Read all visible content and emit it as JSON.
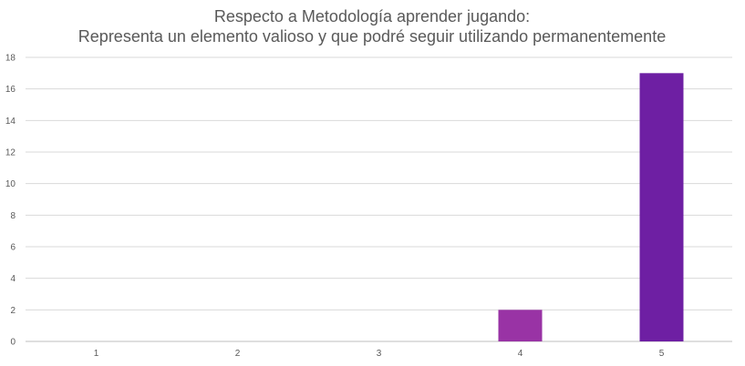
{
  "chart_data": {
    "type": "bar",
    "title": [
      "Respecto a Metodología aprender jugando:",
      "Representa un elemento valioso y que podré seguir utilizando permanentemente"
    ],
    "xlabel": "",
    "ylabel": "",
    "categories": [
      "1",
      "2",
      "3",
      "4",
      "5"
    ],
    "values": [
      0,
      0,
      0,
      2,
      17
    ],
    "ylim": [
      0,
      18
    ],
    "yticks": [
      0,
      2,
      4,
      6,
      8,
      10,
      12,
      14,
      16,
      18
    ],
    "grid": true,
    "legend": "none",
    "colors": [
      "#7030a0",
      "#7030a0",
      "#7030a0",
      "#9933a5",
      "#6e1fa3"
    ]
  }
}
